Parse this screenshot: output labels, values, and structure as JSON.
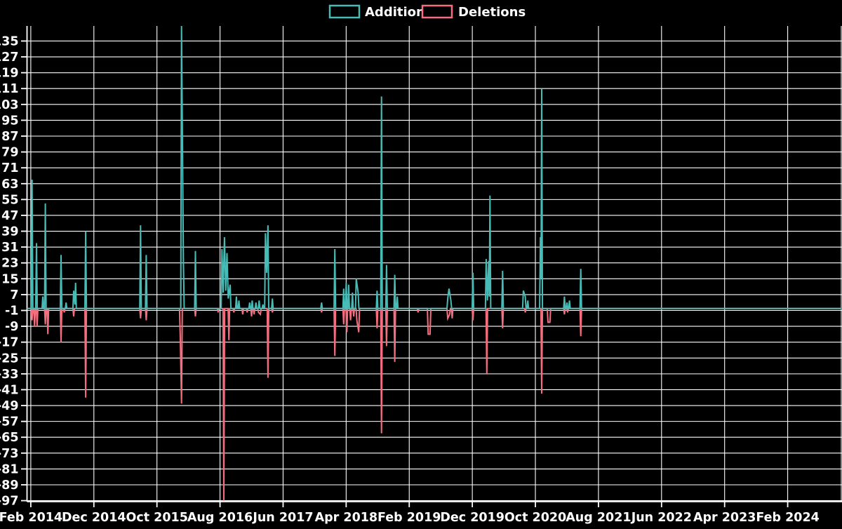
{
  "legend": {
    "additions_label": "Additions",
    "deletions_label": "Deletions"
  },
  "colors": {
    "background": "#000000",
    "grid": "#ffffff",
    "text": "#ffffff",
    "additions": "#47bcb6",
    "deletions": "#f56e7f"
  },
  "chart_data": {
    "type": "line",
    "title": "",
    "xlabel": "",
    "ylabel": "",
    "legend_position": "top-center",
    "grid": true,
    "baseline_value": 0,
    "x_axis": {
      "unit": "months since Feb 2014",
      "xlim": [
        -0.6,
        128.5
      ],
      "ticks": [
        {
          "m": 0,
          "label": "Feb 2014"
        },
        {
          "m": 10,
          "label": "Dec 2014"
        },
        {
          "m": 20,
          "label": "Oct 2015"
        },
        {
          "m": 30,
          "label": "Aug 2016"
        },
        {
          "m": 40,
          "label": "Jun 2017"
        },
        {
          "m": 50,
          "label": "Apr 2018"
        },
        {
          "m": 60,
          "label": "Feb 2019"
        },
        {
          "m": 70,
          "label": "Dec 2019"
        },
        {
          "m": 80,
          "label": "Oct 2020"
        },
        {
          "m": 90,
          "label": "Aug 2021"
        },
        {
          "m": 100,
          "label": "Jun 2022"
        },
        {
          "m": 110,
          "label": "Apr 2023"
        },
        {
          "m": 120,
          "label": "Feb 2024"
        }
      ]
    },
    "y_axis": {
      "ylim": [
        -97.5,
        142.6
      ],
      "tick_min": -97,
      "tick_max": 135,
      "tick_step": 8
    },
    "series": [
      {
        "name": "Additions",
        "color": "#47bcb6",
        "points": [
          [
            0.2,
            65
          ],
          [
            0.9,
            33
          ],
          [
            1.9,
            6
          ],
          [
            2.3,
            53
          ],
          [
            4.8,
            27
          ],
          [
            5.6,
            3
          ],
          [
            6.8,
            9
          ],
          [
            7.0,
            2
          ],
          [
            7.1,
            13
          ],
          [
            8.7,
            39
          ],
          [
            17.4,
            42
          ],
          [
            18.3,
            27
          ],
          [
            23.9,
            145
          ],
          [
            24.2,
            23
          ],
          [
            26.1,
            29
          ],
          [
            30.3,
            30
          ],
          [
            30.5,
            8
          ],
          [
            30.7,
            36
          ],
          [
            30.9,
            9
          ],
          [
            31.1,
            28
          ],
          [
            31.3,
            5
          ],
          [
            31.6,
            12
          ],
          [
            32.6,
            6
          ],
          [
            33.0,
            4
          ],
          [
            34.7,
            3
          ],
          [
            35.1,
            4
          ],
          [
            35.7,
            3
          ],
          [
            36.2,
            4
          ],
          [
            36.8,
            2
          ],
          [
            37.2,
            38
          ],
          [
            37.4,
            18
          ],
          [
            37.6,
            42
          ],
          [
            38.3,
            5
          ],
          [
            46.1,
            3
          ],
          [
            48.2,
            30
          ],
          [
            49.6,
            10
          ],
          [
            50.0,
            13
          ],
          [
            50.4,
            12
          ],
          [
            51.0,
            8
          ],
          [
            51.6,
            15
          ],
          [
            51.9,
            8
          ],
          [
            54.9,
            9
          ],
          [
            55.6,
            107
          ],
          [
            56.4,
            22
          ],
          [
            57.7,
            17
          ],
          [
            58.1,
            6
          ],
          [
            66.1,
            5
          ],
          [
            66.3,
            10
          ],
          [
            66.6,
            4
          ],
          [
            70.1,
            18
          ],
          [
            72.2,
            25
          ],
          [
            72.4,
            4
          ],
          [
            72.6,
            24
          ],
          [
            72.7,
            6
          ],
          [
            72.8,
            57
          ],
          [
            74.8,
            19
          ],
          [
            78.1,
            9
          ],
          [
            78.4,
            6
          ],
          [
            78.8,
            4
          ],
          [
            80.8,
            36
          ],
          [
            80.9,
            15
          ],
          [
            81.0,
            111
          ],
          [
            84.6,
            6
          ],
          [
            85.0,
            3
          ],
          [
            85.4,
            4
          ],
          [
            87.2,
            20
          ]
        ]
      },
      {
        "name": "Deletions",
        "color": "#f56e7f",
        "points": [
          [
            0.2,
            -6
          ],
          [
            0.6,
            -9
          ],
          [
            1.0,
            -9
          ],
          [
            2.3,
            -8
          ],
          [
            2.7,
            -13
          ],
          [
            4.8,
            -17
          ],
          [
            5.3,
            -2
          ],
          [
            6.8,
            -4
          ],
          [
            8.7,
            -45
          ],
          [
            17.4,
            -5
          ],
          [
            18.3,
            -6
          ],
          [
            23.7,
            -14
          ],
          [
            23.9,
            -48
          ],
          [
            26.1,
            -4
          ],
          [
            29.7,
            -2
          ],
          [
            30.6,
            -97
          ],
          [
            31.4,
            -16
          ],
          [
            32.2,
            -2
          ],
          [
            33.6,
            -3
          ],
          [
            34.3,
            -2
          ],
          [
            35.0,
            -4
          ],
          [
            35.4,
            -3
          ],
          [
            36.1,
            -2
          ],
          [
            36.4,
            -3
          ],
          [
            37.6,
            -35
          ],
          [
            38.3,
            -2
          ],
          [
            46.1,
            -2
          ],
          [
            48.2,
            -24
          ],
          [
            49.6,
            -8
          ],
          [
            50.1,
            -12
          ],
          [
            50.7,
            -6
          ],
          [
            51.2,
            -4
          ],
          [
            51.7,
            -6
          ],
          [
            52.0,
            -12
          ],
          [
            54.9,
            -10
          ],
          [
            55.6,
            -63
          ],
          [
            56.4,
            -19
          ],
          [
            57.7,
            -27
          ],
          [
            61.4,
            -2
          ],
          [
            63.0,
            -13
          ],
          [
            63.3,
            -13
          ],
          [
            66.1,
            -5
          ],
          [
            66.4,
            -3
          ],
          [
            66.8,
            -5
          ],
          [
            70.1,
            -6
          ],
          [
            72.3,
            -33
          ],
          [
            74.8,
            -10
          ],
          [
            78.4,
            -2
          ],
          [
            81.0,
            -43
          ],
          [
            82.0,
            -7
          ],
          [
            82.3,
            -7
          ],
          [
            84.6,
            -3
          ],
          [
            85.1,
            -2
          ],
          [
            87.2,
            -14
          ]
        ]
      }
    ]
  }
}
